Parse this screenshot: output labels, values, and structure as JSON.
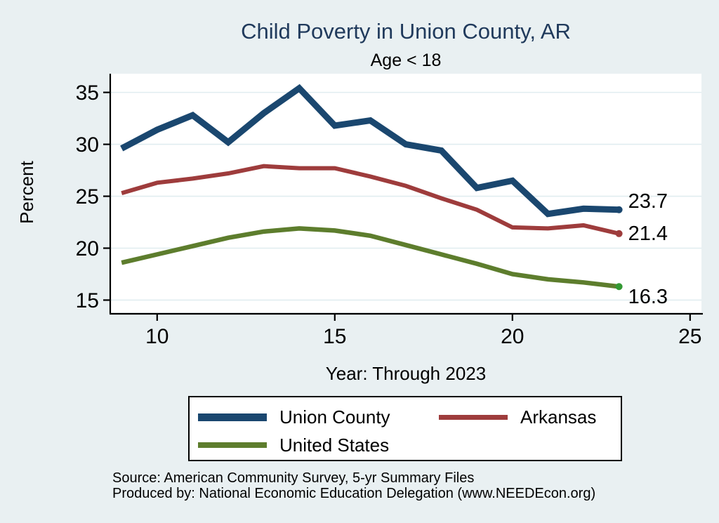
{
  "page": {
    "title": "Child Poverty in Union County, AR",
    "subtitle": "Age < 18",
    "ylabel": "Percent",
    "xlabel": "Year: Through 2023",
    "source_line1": "Source: American Community Survey, 5-yr Summary Files",
    "source_line2": "Produced by: National Economic Education Delegation (www.NEEDEcon.org)",
    "background_color": "#e9f0f2",
    "title_color": "#203a5c",
    "plot_background_color": "#ffffff",
    "gridline_color": "#e0edf0"
  },
  "legend": {
    "items": [
      {
        "label": "Union County",
        "color": "#1a476f"
      },
      {
        "label": "Arkansas",
        "color": "#9e3c3c"
      },
      {
        "label": "United States",
        "color": "#5d7d2d"
      }
    ]
  },
  "chart_data": {
    "type": "line",
    "title": "Child Poverty in Union County, AR",
    "subtitle": "Age < 18",
    "xlabel": "Year: Through 2023",
    "ylabel": "Percent",
    "x_years": [
      2009,
      2010,
      2011,
      2012,
      2013,
      2014,
      2015,
      2016,
      2017,
      2018,
      2019,
      2020,
      2021,
      2022,
      2023
    ],
    "x": [
      9,
      10,
      11,
      12,
      13,
      14,
      15,
      16,
      17,
      18,
      19,
      20,
      21,
      22,
      23
    ],
    "x_ticks": [
      10,
      15,
      20,
      25
    ],
    "y_ticks": [
      15,
      20,
      25,
      30,
      35
    ],
    "x_range": [
      8.68,
      25.32
    ],
    "y_range": [
      13.95,
      36.8
    ],
    "grid": true,
    "legend_position": "bottom",
    "series": [
      {
        "name": "Union County",
        "color": "#1a476f",
        "line_width": 9,
        "values": [
          29.6,
          31.4,
          32.8,
          30.2,
          33.0,
          35.4,
          31.8,
          32.3,
          30.0,
          29.4,
          25.8,
          26.5,
          23.3,
          23.8,
          23.7
        ],
        "end_label": "23.7",
        "end_label_dy": -13,
        "marker_color": "#1a476f"
      },
      {
        "name": "Arkansas",
        "color": "#9e3c3c",
        "line_width": 6,
        "values": [
          25.3,
          26.3,
          26.7,
          27.2,
          27.9,
          27.7,
          27.7,
          26.9,
          26.0,
          24.8,
          23.7,
          22.0,
          21.9,
          22.2,
          21.4
        ],
        "end_label": "21.4",
        "end_label_dy": -1,
        "marker_color": "#9e3c3c"
      },
      {
        "name": "United States",
        "color": "#5d7d2d",
        "line_width": 6.5,
        "values": [
          18.6,
          19.4,
          20.2,
          21.0,
          21.6,
          21.9,
          21.7,
          21.2,
          20.3,
          19.4,
          18.5,
          17.5,
          17.0,
          16.7,
          16.3
        ],
        "end_label": "16.3",
        "end_label_dy": 14,
        "marker_color": "#339933"
      }
    ]
  }
}
